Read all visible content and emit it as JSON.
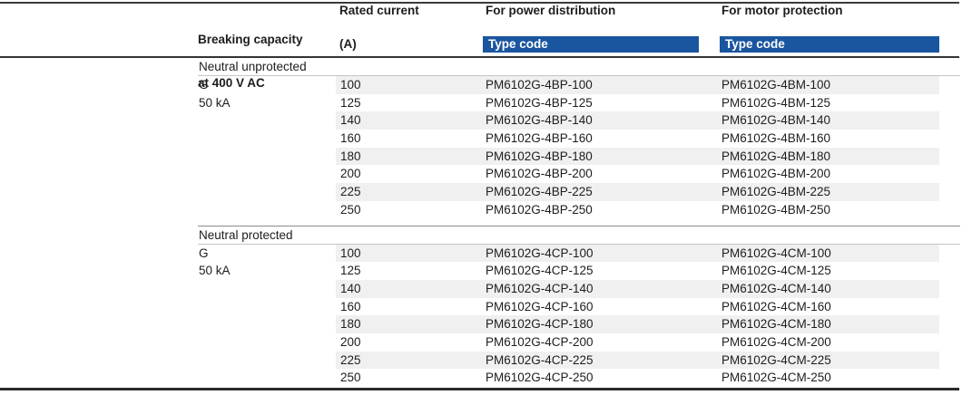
{
  "colors": {
    "band_blue": "#1a55a0",
    "row_stripe": "#f0f0f0",
    "rule_dark": "#333333",
    "section_divider": "#8c8c8c",
    "label_underline": "#c6c6c6",
    "band_text": "#ffffff",
    "text": "#1d1d1d"
  },
  "header": {
    "breaking_capacity_line1": "Breaking capacity",
    "breaking_capacity_line2": "at 400 V AC",
    "rated_current": "Rated current",
    "rated_current_unit": "(A)",
    "power_distribution": "For power distribution",
    "motor_protection": "For motor protection",
    "type_code_label_power": "Type code",
    "type_code_label_motor": "Type code"
  },
  "sections": [
    {
      "label": "Neutral unprotected",
      "rows": [
        {
          "capacity": "G",
          "current": "100",
          "power": "PM6102G-4BP-100",
          "motor": "PM6102G-4BM-100"
        },
        {
          "capacity": "50 kA",
          "current": "125",
          "power": "PM6102G-4BP-125",
          "motor": "PM6102G-4BM-125"
        },
        {
          "capacity": "",
          "current": "140",
          "power": "PM6102G-4BP-140",
          "motor": "PM6102G-4BM-140"
        },
        {
          "capacity": "",
          "current": "160",
          "power": "PM6102G-4BP-160",
          "motor": "PM6102G-4BM-160"
        },
        {
          "capacity": "",
          "current": "180",
          "power": "PM6102G-4BP-180",
          "motor": "PM6102G-4BM-180"
        },
        {
          "capacity": "",
          "current": "200",
          "power": "PM6102G-4BP-200",
          "motor": "PM6102G-4BM-200"
        },
        {
          "capacity": "",
          "current": "225",
          "power": "PM6102G-4BP-225",
          "motor": "PM6102G-4BM-225"
        },
        {
          "capacity": "",
          "current": "250",
          "power": "PM6102G-4BP-250",
          "motor": "PM6102G-4BM-250"
        }
      ]
    },
    {
      "label": "Neutral protected",
      "rows": [
        {
          "capacity": "G",
          "current": "100",
          "power": "PM6102G-4CP-100",
          "motor": "PM6102G-4CM-100"
        },
        {
          "capacity": "50 kA",
          "current": "125",
          "power": "PM6102G-4CP-125",
          "motor": "PM6102G-4CM-125"
        },
        {
          "capacity": "",
          "current": "140",
          "power": "PM6102G-4CP-140",
          "motor": "PM6102G-4CM-140"
        },
        {
          "capacity": "",
          "current": "160",
          "power": "PM6102G-4CP-160",
          "motor": "PM6102G-4CM-160"
        },
        {
          "capacity": "",
          "current": "180",
          "power": "PM6102G-4CP-180",
          "motor": "PM6102G-4CM-180"
        },
        {
          "capacity": "",
          "current": "200",
          "power": "PM6102G-4CP-200",
          "motor": "PM6102G-4CM-200"
        },
        {
          "capacity": "",
          "current": "225",
          "power": "PM6102G-4CP-225",
          "motor": "PM6102G-4CM-225"
        },
        {
          "capacity": "",
          "current": "250",
          "power": "PM6102G-4CP-250",
          "motor": "PM6102G-4CM-250"
        }
      ]
    }
  ]
}
